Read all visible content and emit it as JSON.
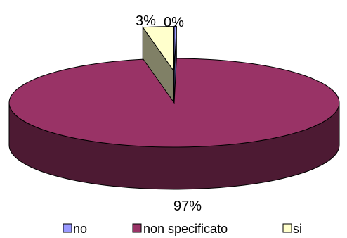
{
  "chart_data": {
    "type": "pie",
    "style": "3d-exploded",
    "slices": [
      {
        "label": "no",
        "value": 0,
        "display": "0%",
        "color": "#9999ff"
      },
      {
        "label": "non specificato",
        "value": 97,
        "display": "97%",
        "color": "#993366"
      },
      {
        "label": "si",
        "value": 3,
        "display": "3%",
        "color": "#ffffcc"
      }
    ],
    "legend": {
      "position": "bottom",
      "items": [
        "no",
        "non specificato",
        "si"
      ]
    }
  }
}
